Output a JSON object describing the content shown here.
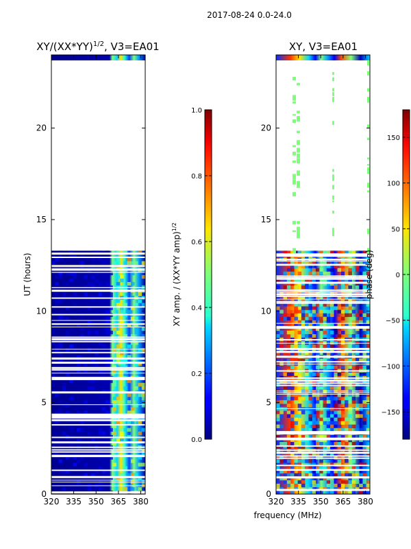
{
  "figure": {
    "suptitle": "2017-08-24 0.0-24.0"
  },
  "chart_data": [
    {
      "type": "heatmap",
      "title_text": "XY/(XX*YY)",
      "title_exp": "1/2",
      "title_suffix": ", V3=EA01",
      "xlabel": "",
      "ylabel": "UT (hours)",
      "x_tick_labels": [
        "320",
        "335",
        "350",
        "365",
        "380"
      ],
      "y_tick_labels": [
        "0",
        "5",
        "10",
        "15",
        "20"
      ],
      "x_ticks": [
        320,
        335,
        350,
        365,
        380
      ],
      "y_ticks": [
        0,
        5,
        10,
        15,
        20
      ],
      "xlim": [
        320,
        383
      ],
      "ylim": [
        0,
        24
      ],
      "colormap": "jet",
      "colorbar": {
        "label_text": "XY amp. / (XX*YY amp)",
        "label_exp": "1/2",
        "range": [
          0.0,
          1.0
        ],
        "tick_values": [
          0.0,
          0.2,
          0.4,
          0.6,
          0.8,
          1.0
        ],
        "tick_labels": [
          "0.0",
          "0.2",
          "0.4",
          "0.6",
          "0.8",
          "1.0"
        ]
      },
      "data_gap_hours": [
        13.3,
        23.7
      ]
    },
    {
      "type": "heatmap",
      "title": "XY, V3=EA01",
      "xlabel": "frequency (MHz)",
      "ylabel": "",
      "x_tick_labels": [
        "320",
        "335",
        "350",
        "365",
        "380"
      ],
      "y_tick_labels": [
        "0",
        "5",
        "10",
        "15",
        "20"
      ],
      "x_ticks": [
        320,
        335,
        350,
        365,
        380
      ],
      "y_ticks": [
        0,
        5,
        10,
        15,
        20
      ],
      "xlim": [
        320,
        383
      ],
      "ylim": [
        0,
        24
      ],
      "colormap": "jet",
      "colorbar": {
        "label": "phase (deg)",
        "range": [
          -180,
          180
        ],
        "tick_values": [
          -150,
          -100,
          -50,
          0,
          50,
          100,
          150
        ],
        "tick_labels": [
          "−150",
          "−100",
          "−50",
          "0",
          "50",
          "100",
          "150"
        ]
      },
      "data_gap_hours": [
        13.3,
        23.7
      ]
    }
  ]
}
